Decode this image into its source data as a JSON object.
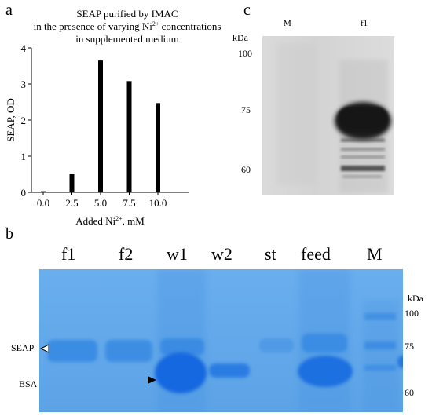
{
  "panel_a": {
    "letter": "a",
    "chart_data": {
      "type": "bar",
      "title_lines": [
        "SEAP purified by IMAC",
        "in the presence of varying Ni",
        "in supplemented medium"
      ],
      "title_sup": "2+",
      "title_after_sup": " concentrations",
      "categories": [
        "0.0",
        "2.5",
        "5.0",
        "7.5",
        "10.0"
      ],
      "values": [
        0.03,
        0.5,
        3.65,
        3.08,
        2.47
      ],
      "ylabel": "SEAP, OD",
      "xlabel_pre": "Added Ni",
      "xlabel_sup": "2+",
      "xlabel_post": ", mM",
      "ylim": [
        0,
        4
      ],
      "yticks": [
        "0",
        "1",
        "2",
        "3",
        "4"
      ],
      "bar_color": "#000000",
      "grid": false
    }
  },
  "panel_b": {
    "letter": "b",
    "lanes": [
      "f1",
      "f2",
      "w1",
      "w2",
      "st",
      "feed",
      "M"
    ],
    "kda_label": "kDa",
    "markers": [
      "100",
      "75",
      "60"
    ],
    "seap_label": "SEAP",
    "bsa_label": "BSA",
    "gel_color": "#5aa2e6",
    "band_color": "#1a6fe0"
  },
  "panel_c": {
    "letter": "c",
    "lanes": [
      "M",
      "f1"
    ],
    "kda_label": "kDa",
    "markers": [
      "100",
      "75",
      "60"
    ],
    "blot_color": "#d6d6d6",
    "band_color": "#1b1b1b"
  }
}
